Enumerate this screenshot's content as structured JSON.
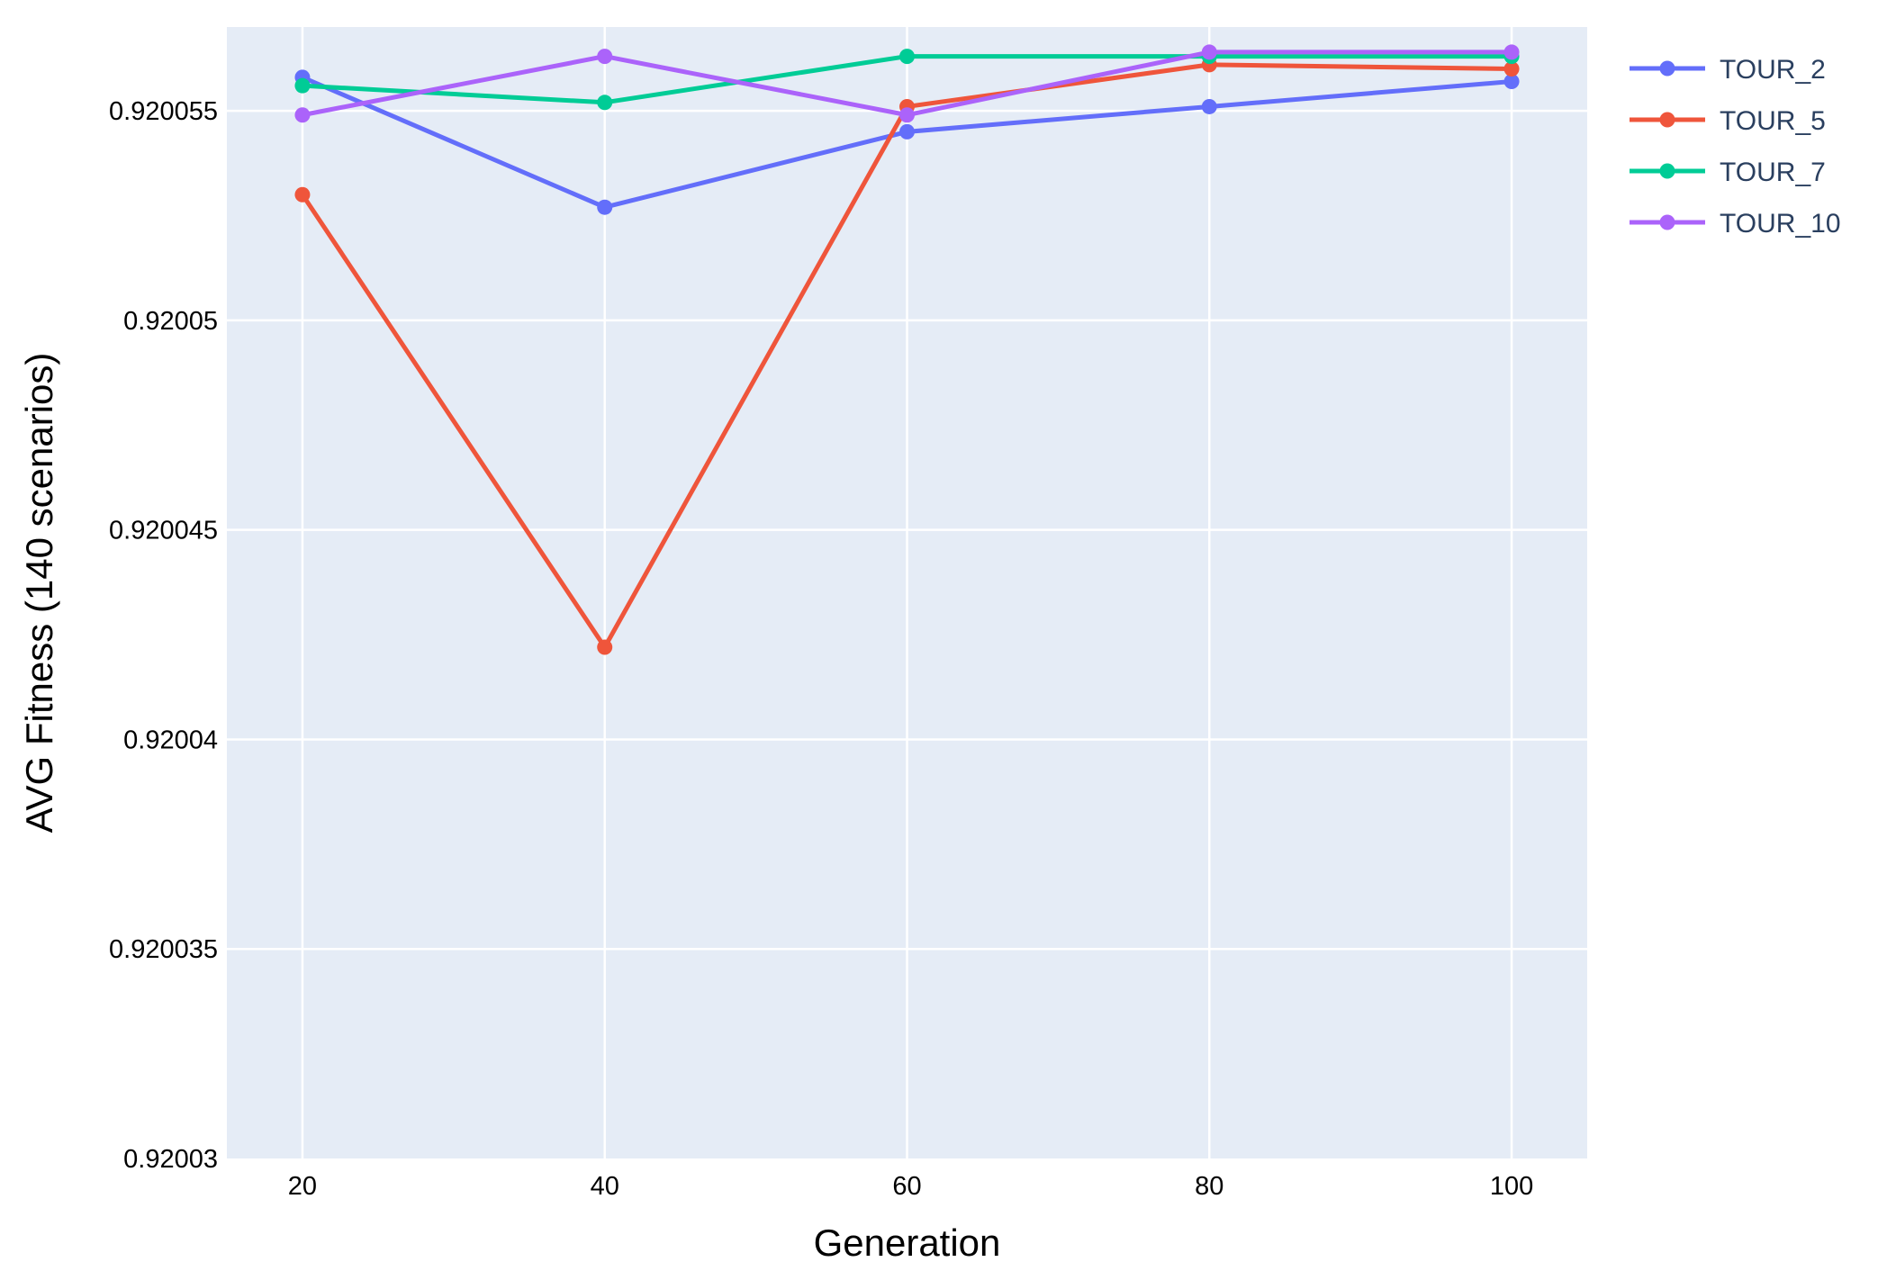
{
  "chart_data": {
    "type": "line",
    "title": "",
    "xlabel": "Generation",
    "ylabel": "AVG Fitness (140 scenarios)",
    "x": [
      20,
      40,
      60,
      80,
      100
    ],
    "x_ticks": [
      "20",
      "40",
      "60",
      "80",
      "100"
    ],
    "xlim": [
      15,
      105
    ],
    "y_ticks": [
      "0.92003",
      "0.920035",
      "0.92004",
      "0.920045",
      "0.92005",
      "0.920055"
    ],
    "y_tick_values": [
      0.92003,
      0.920035,
      0.92004,
      0.920045,
      0.92005,
      0.920055
    ],
    "ylim": [
      0.92003,
      0.920057
    ],
    "grid": true,
    "legend_position": "top-right",
    "plot_background": "#e5ecf6",
    "series": [
      {
        "name": "TOUR_2",
        "color": "#636efa",
        "values": [
          0.9200558,
          0.9200527,
          0.9200545,
          0.9200551,
          0.9200557
        ]
      },
      {
        "name": "TOUR_5",
        "color": "#ef553b",
        "values": [
          0.920053,
          0.9200422,
          0.9200551,
          0.9200561,
          0.920056
        ]
      },
      {
        "name": "TOUR_7",
        "color": "#00cc96",
        "values": [
          0.9200556,
          0.9200552,
          0.9200563,
          0.9200563,
          0.9200563
        ]
      },
      {
        "name": "TOUR_10",
        "color": "#ab63fa",
        "values": [
          0.9200549,
          0.9200563,
          0.9200549,
          0.9200564,
          0.9200564
        ]
      }
    ]
  }
}
